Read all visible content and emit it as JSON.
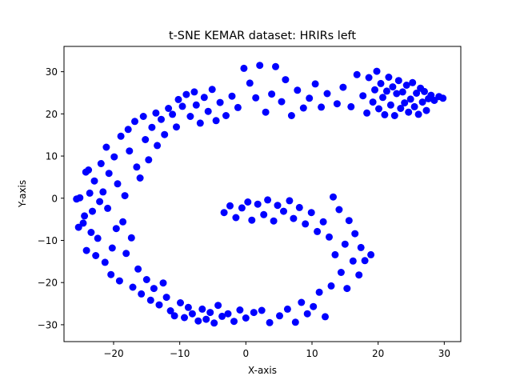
{
  "chart_data": {
    "type": "scatter",
    "title": "t-SNE KEMAR dataset: HRIRs left",
    "xlabel": "X-axis",
    "ylabel": "Y-axis",
    "xlim": [
      -27.5,
      32.5
    ],
    "ylim": [
      -34,
      36
    ],
    "xticks": [
      -20,
      -10,
      0,
      10,
      20,
      30
    ],
    "yticks": [
      -30,
      -20,
      -10,
      0,
      10,
      20,
      30
    ],
    "grid": false,
    "marker_color": "#0000ff",
    "series": [
      {
        "values": [
          [
            -25.6,
            -0.2
          ],
          [
            -25.3,
            -6.9
          ],
          [
            -25.1,
            0.1
          ],
          [
            -24.6,
            -5.9
          ],
          [
            -24.4,
            -4.2
          ],
          [
            -24.2,
            6.2
          ],
          [
            -24.1,
            -12.4
          ],
          [
            -23.8,
            6.7
          ],
          [
            -23.6,
            1.2
          ],
          [
            -23.4,
            -8.1
          ],
          [
            -23.2,
            -3.1
          ],
          [
            -22.9,
            4.1
          ],
          [
            -22.7,
            -13.6
          ],
          [
            -22.4,
            -9.5
          ],
          [
            -22.1,
            -0.8
          ],
          [
            -21.9,
            8.2
          ],
          [
            -21.6,
            1.5
          ],
          [
            -21.3,
            -15.2
          ],
          [
            -21.1,
            12.1
          ],
          [
            -20.9,
            -2.4
          ],
          [
            -20.7,
            5.9
          ],
          [
            -20.4,
            -18.1
          ],
          [
            -20.2,
            -11.8
          ],
          [
            -19.9,
            9.8
          ],
          [
            -19.6,
            -7.2
          ],
          [
            -19.4,
            3.4
          ],
          [
            -19.1,
            -19.6
          ],
          [
            -18.9,
            14.7
          ],
          [
            -18.6,
            -5.6
          ],
          [
            -18.3,
            0.6
          ],
          [
            -18.1,
            -13.1
          ],
          [
            -17.8,
            16.3
          ],
          [
            -17.6,
            11.2
          ],
          [
            -17.3,
            -9.4
          ],
          [
            -17.1,
            -21.1
          ],
          [
            -16.8,
            18.2
          ],
          [
            -16.5,
            7.4
          ],
          [
            -16.3,
            -16.8
          ],
          [
            -16.0,
            4.8
          ],
          [
            -15.8,
            -22.7
          ],
          [
            -15.5,
            19.4
          ],
          [
            -15.2,
            13.9
          ],
          [
            -15.0,
            -19.3
          ],
          [
            -14.7,
            9.1
          ],
          [
            -14.4,
            -24.2
          ],
          [
            -14.2,
            16.8
          ],
          [
            -13.9,
            -21.4
          ],
          [
            -13.6,
            20.2
          ],
          [
            -13.4,
            12.5
          ],
          [
            -13.1,
            -25.3
          ],
          [
            -12.8,
            18.7
          ],
          [
            -12.5,
            -20.1
          ],
          [
            -12.3,
            15.1
          ],
          [
            -12.0,
            -23.5
          ],
          [
            -11.7,
            21.3
          ],
          [
            -11.4,
            -26.7
          ],
          [
            -11.1,
            19.9
          ],
          [
            -10.8,
            -27.9
          ],
          [
            -10.5,
            16.9
          ],
          [
            -10.2,
            23.4
          ],
          [
            -9.9,
            -24.8
          ],
          [
            -9.6,
            21.8
          ],
          [
            -9.3,
            -28.3
          ],
          [
            -9.0,
            24.6
          ],
          [
            -8.7,
            -25.9
          ],
          [
            -8.4,
            19.4
          ],
          [
            -8.1,
            -27.4
          ],
          [
            -7.8,
            25.2
          ],
          [
            -7.5,
            22.1
          ],
          [
            -7.2,
            -29.1
          ],
          [
            -6.9,
            17.8
          ],
          [
            -6.6,
            -26.3
          ],
          [
            -6.3,
            23.9
          ],
          [
            -6.0,
            -28.7
          ],
          [
            -5.7,
            20.6
          ],
          [
            -5.4,
            -27.1
          ],
          [
            -5.1,
            25.8
          ],
          [
            -4.8,
            -29.6
          ],
          [
            -4.5,
            18.4
          ],
          [
            -4.2,
            -25.4
          ],
          [
            -3.9,
            22.7
          ],
          [
            -3.6,
            -28.0
          ],
          [
            -3.3,
            -3.4
          ],
          [
            -3.0,
            19.6
          ],
          [
            -2.7,
            -27.4
          ],
          [
            -2.4,
            -1.8
          ],
          [
            -2.1,
            24.2
          ],
          [
            -1.8,
            -29.2
          ],
          [
            -1.5,
            -4.6
          ],
          [
            -1.2,
            21.5
          ],
          [
            -0.9,
            -26.5
          ],
          [
            -0.6,
            -2.3
          ],
          [
            -0.3,
            30.8
          ],
          [
            0.0,
            -28.4
          ],
          [
            0.3,
            -0.9
          ],
          [
            0.6,
            27.3
          ],
          [
            0.9,
            -5.2
          ],
          [
            1.2,
            -27.1
          ],
          [
            1.5,
            23.8
          ],
          [
            1.8,
            -1.4
          ],
          [
            2.1,
            31.5
          ],
          [
            2.4,
            -26.6
          ],
          [
            2.7,
            -3.9
          ],
          [
            3.0,
            20.4
          ],
          [
            3.3,
            -0.4
          ],
          [
            3.6,
            -29.5
          ],
          [
            3.9,
            24.7
          ],
          [
            4.2,
            -5.4
          ],
          [
            4.5,
            31.2
          ],
          [
            4.8,
            -1.7
          ],
          [
            5.1,
            -27.9
          ],
          [
            5.4,
            22.9
          ],
          [
            5.7,
            -3.1
          ],
          [
            6.0,
            28.1
          ],
          [
            6.3,
            -26.3
          ],
          [
            6.6,
            -0.6
          ],
          [
            6.9,
            19.6
          ],
          [
            7.2,
            -4.8
          ],
          [
            7.5,
            -29.4
          ],
          [
            7.8,
            25.6
          ],
          [
            8.1,
            -2.2
          ],
          [
            8.4,
            -24.7
          ],
          [
            8.7,
            21.4
          ],
          [
            9.0,
            -6.1
          ],
          [
            9.3,
            -27.4
          ],
          [
            9.6,
            23.7
          ],
          [
            9.9,
            -3.4
          ],
          [
            10.2,
            -25.7
          ],
          [
            10.5,
            27.1
          ],
          [
            10.8,
            -7.9
          ],
          [
            11.1,
            -22.3
          ],
          [
            11.4,
            21.6
          ],
          [
            11.7,
            -5.6
          ],
          [
            12.0,
            -28.1
          ],
          [
            12.3,
            24.8
          ],
          [
            12.6,
            -9.2
          ],
          [
            12.9,
            -20.8
          ],
          [
            13.2,
            0.3
          ],
          [
            13.5,
            -13.4
          ],
          [
            13.8,
            22.4
          ],
          [
            14.1,
            -2.7
          ],
          [
            14.4,
            -17.6
          ],
          [
            14.7,
            26.3
          ],
          [
            15.0,
            -10.9
          ],
          [
            15.3,
            -21.4
          ],
          [
            15.6,
            -5.3
          ],
          [
            15.9,
            21.7
          ],
          [
            16.2,
            -14.9
          ],
          [
            16.5,
            -8.4
          ],
          [
            16.8,
            29.3
          ],
          [
            17.1,
            -18.2
          ],
          [
            17.4,
            -11.7
          ],
          [
            17.7,
            24.3
          ],
          [
            18.0,
            -14.8
          ],
          [
            18.3,
            20.2
          ],
          [
            18.6,
            28.6
          ],
          [
            18.9,
            -13.4
          ],
          [
            19.2,
            22.8
          ],
          [
            19.5,
            25.7
          ],
          [
            19.8,
            30.1
          ],
          [
            20.1,
            21.2
          ],
          [
            20.4,
            27.2
          ],
          [
            20.7,
            23.9
          ],
          [
            21.0,
            19.8
          ],
          [
            21.3,
            25.4
          ],
          [
            21.6,
            28.7
          ],
          [
            21.9,
            22.1
          ],
          [
            22.2,
            26.4
          ],
          [
            22.5,
            19.6
          ],
          [
            22.8,
            24.8
          ],
          [
            23.1,
            27.9
          ],
          [
            23.4,
            21.3
          ],
          [
            23.7,
            25.2
          ],
          [
            24.0,
            22.6
          ],
          [
            24.3,
            26.8
          ],
          [
            24.6,
            20.4
          ],
          [
            24.9,
            23.5
          ],
          [
            25.2,
            27.4
          ],
          [
            25.5,
            21.7
          ],
          [
            25.8,
            24.9
          ],
          [
            26.1,
            19.9
          ],
          [
            26.4,
            26.1
          ],
          [
            26.7,
            22.8
          ],
          [
            27.0,
            25.3
          ],
          [
            27.3,
            20.8
          ],
          [
            27.6,
            23.6
          ],
          [
            28.0,
            24.4
          ],
          [
            28.5,
            23.2
          ],
          [
            29.2,
            24.1
          ],
          [
            29.8,
            23.7
          ]
        ]
      }
    ]
  }
}
